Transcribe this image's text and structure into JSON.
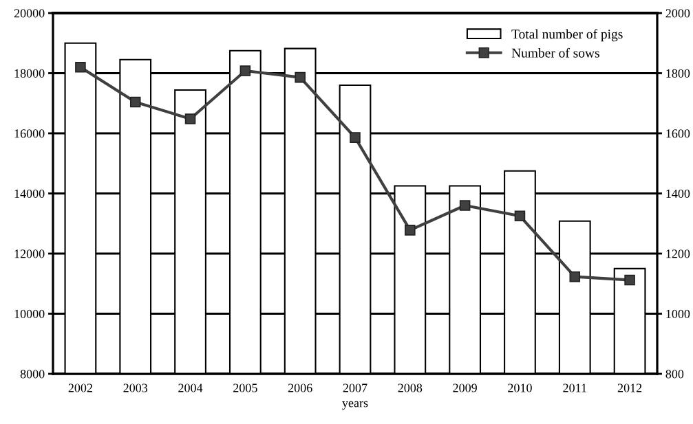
{
  "chart_data": {
    "type": "bar",
    "xlabel": "years",
    "categories": [
      "2002",
      "2003",
      "2004",
      "2005",
      "2006",
      "2007",
      "2008",
      "2009",
      "2010",
      "2011",
      "2012"
    ],
    "series": [
      {
        "name": "Total number of pigs",
        "color": "#ffffff",
        "values": [
          19000,
          18450,
          17440,
          18750,
          18820,
          17600,
          14250,
          14250,
          14750,
          13080,
          11500
        ]
      },
      {
        "name": "Number of sows",
        "type": "line",
        "axis": "y2",
        "color": "#404040",
        "marker": "square",
        "values": [
          1820,
          1704,
          1648,
          1808,
          1786,
          1586,
          1278,
          1360,
          1325,
          1123,
          1112
        ]
      }
    ],
    "ylim": [
      8000,
      20000
    ],
    "yticks": [
      8000,
      10000,
      12000,
      14000,
      16000,
      18000,
      20000
    ],
    "y2lim": [
      800,
      2000
    ],
    "y2ticks": [
      800,
      1000,
      1200,
      1400,
      1600,
      1800,
      2000
    ],
    "grid": "y",
    "legend": "top right"
  }
}
